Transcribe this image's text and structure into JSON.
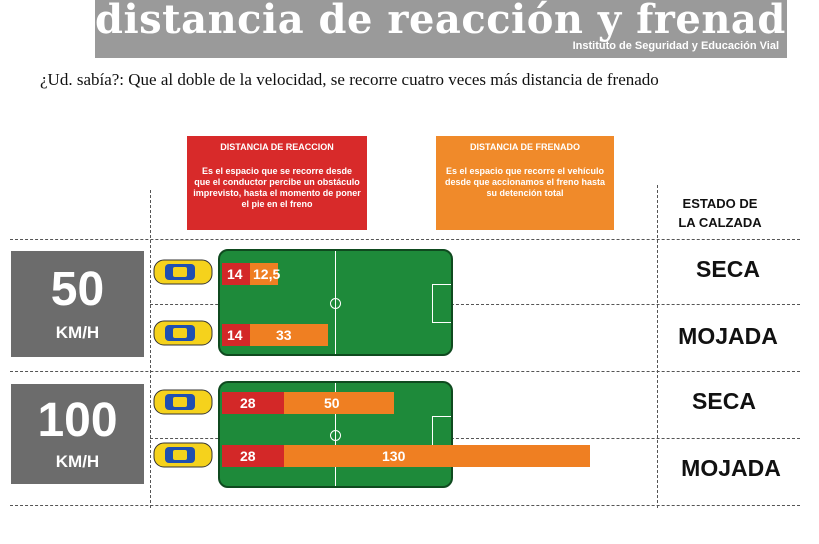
{
  "header": {
    "title": "distancia de reacción y frenado",
    "org": "Instituto de Seguridad y Educación Vial"
  },
  "question": "¿Ud. sabía?: Que al doble de la velocidad, se recorre cuatro veces más  distancia de frenado",
  "definitions": {
    "reaccion": {
      "title": "DISTANCIA DE REACCION",
      "text": "Es el espacio que se recorre desde que el conductor percibe un obstáculo imprevisto, hasta el momento de poner el pie en el freno"
    },
    "frenado": {
      "title": "DISTANCIA DE FRENADO",
      "text": "Es el espacio que  recorre el vehículo desde que accionamos el freno hasta su detención total"
    }
  },
  "estado_label": {
    "line1": "ESTADO DE",
    "line2": "LA CALZADA"
  },
  "speeds": [
    {
      "value": "50",
      "unit": "KM/H"
    },
    {
      "value": "100",
      "unit": "KM/H"
    }
  ],
  "rows": [
    {
      "reaction": "14",
      "braking": "12,5",
      "condition": "SECA"
    },
    {
      "reaction": "14",
      "braking": "33",
      "condition": "MOJADA"
    },
    {
      "reaction": "28",
      "braking": "50",
      "condition": "SECA"
    },
    {
      "reaction": "28",
      "braking": "130",
      "condition": "MOJADA"
    }
  ],
  "colors": {
    "reaction": "#d32828",
    "braking": "#ef7f22",
    "field": "#1e8a3a",
    "speed_box": "#6c6c6c",
    "header": "#9a9a9a",
    "car": "#f5d21c"
  },
  "icons": {
    "car": "car-top-view-icon"
  }
}
